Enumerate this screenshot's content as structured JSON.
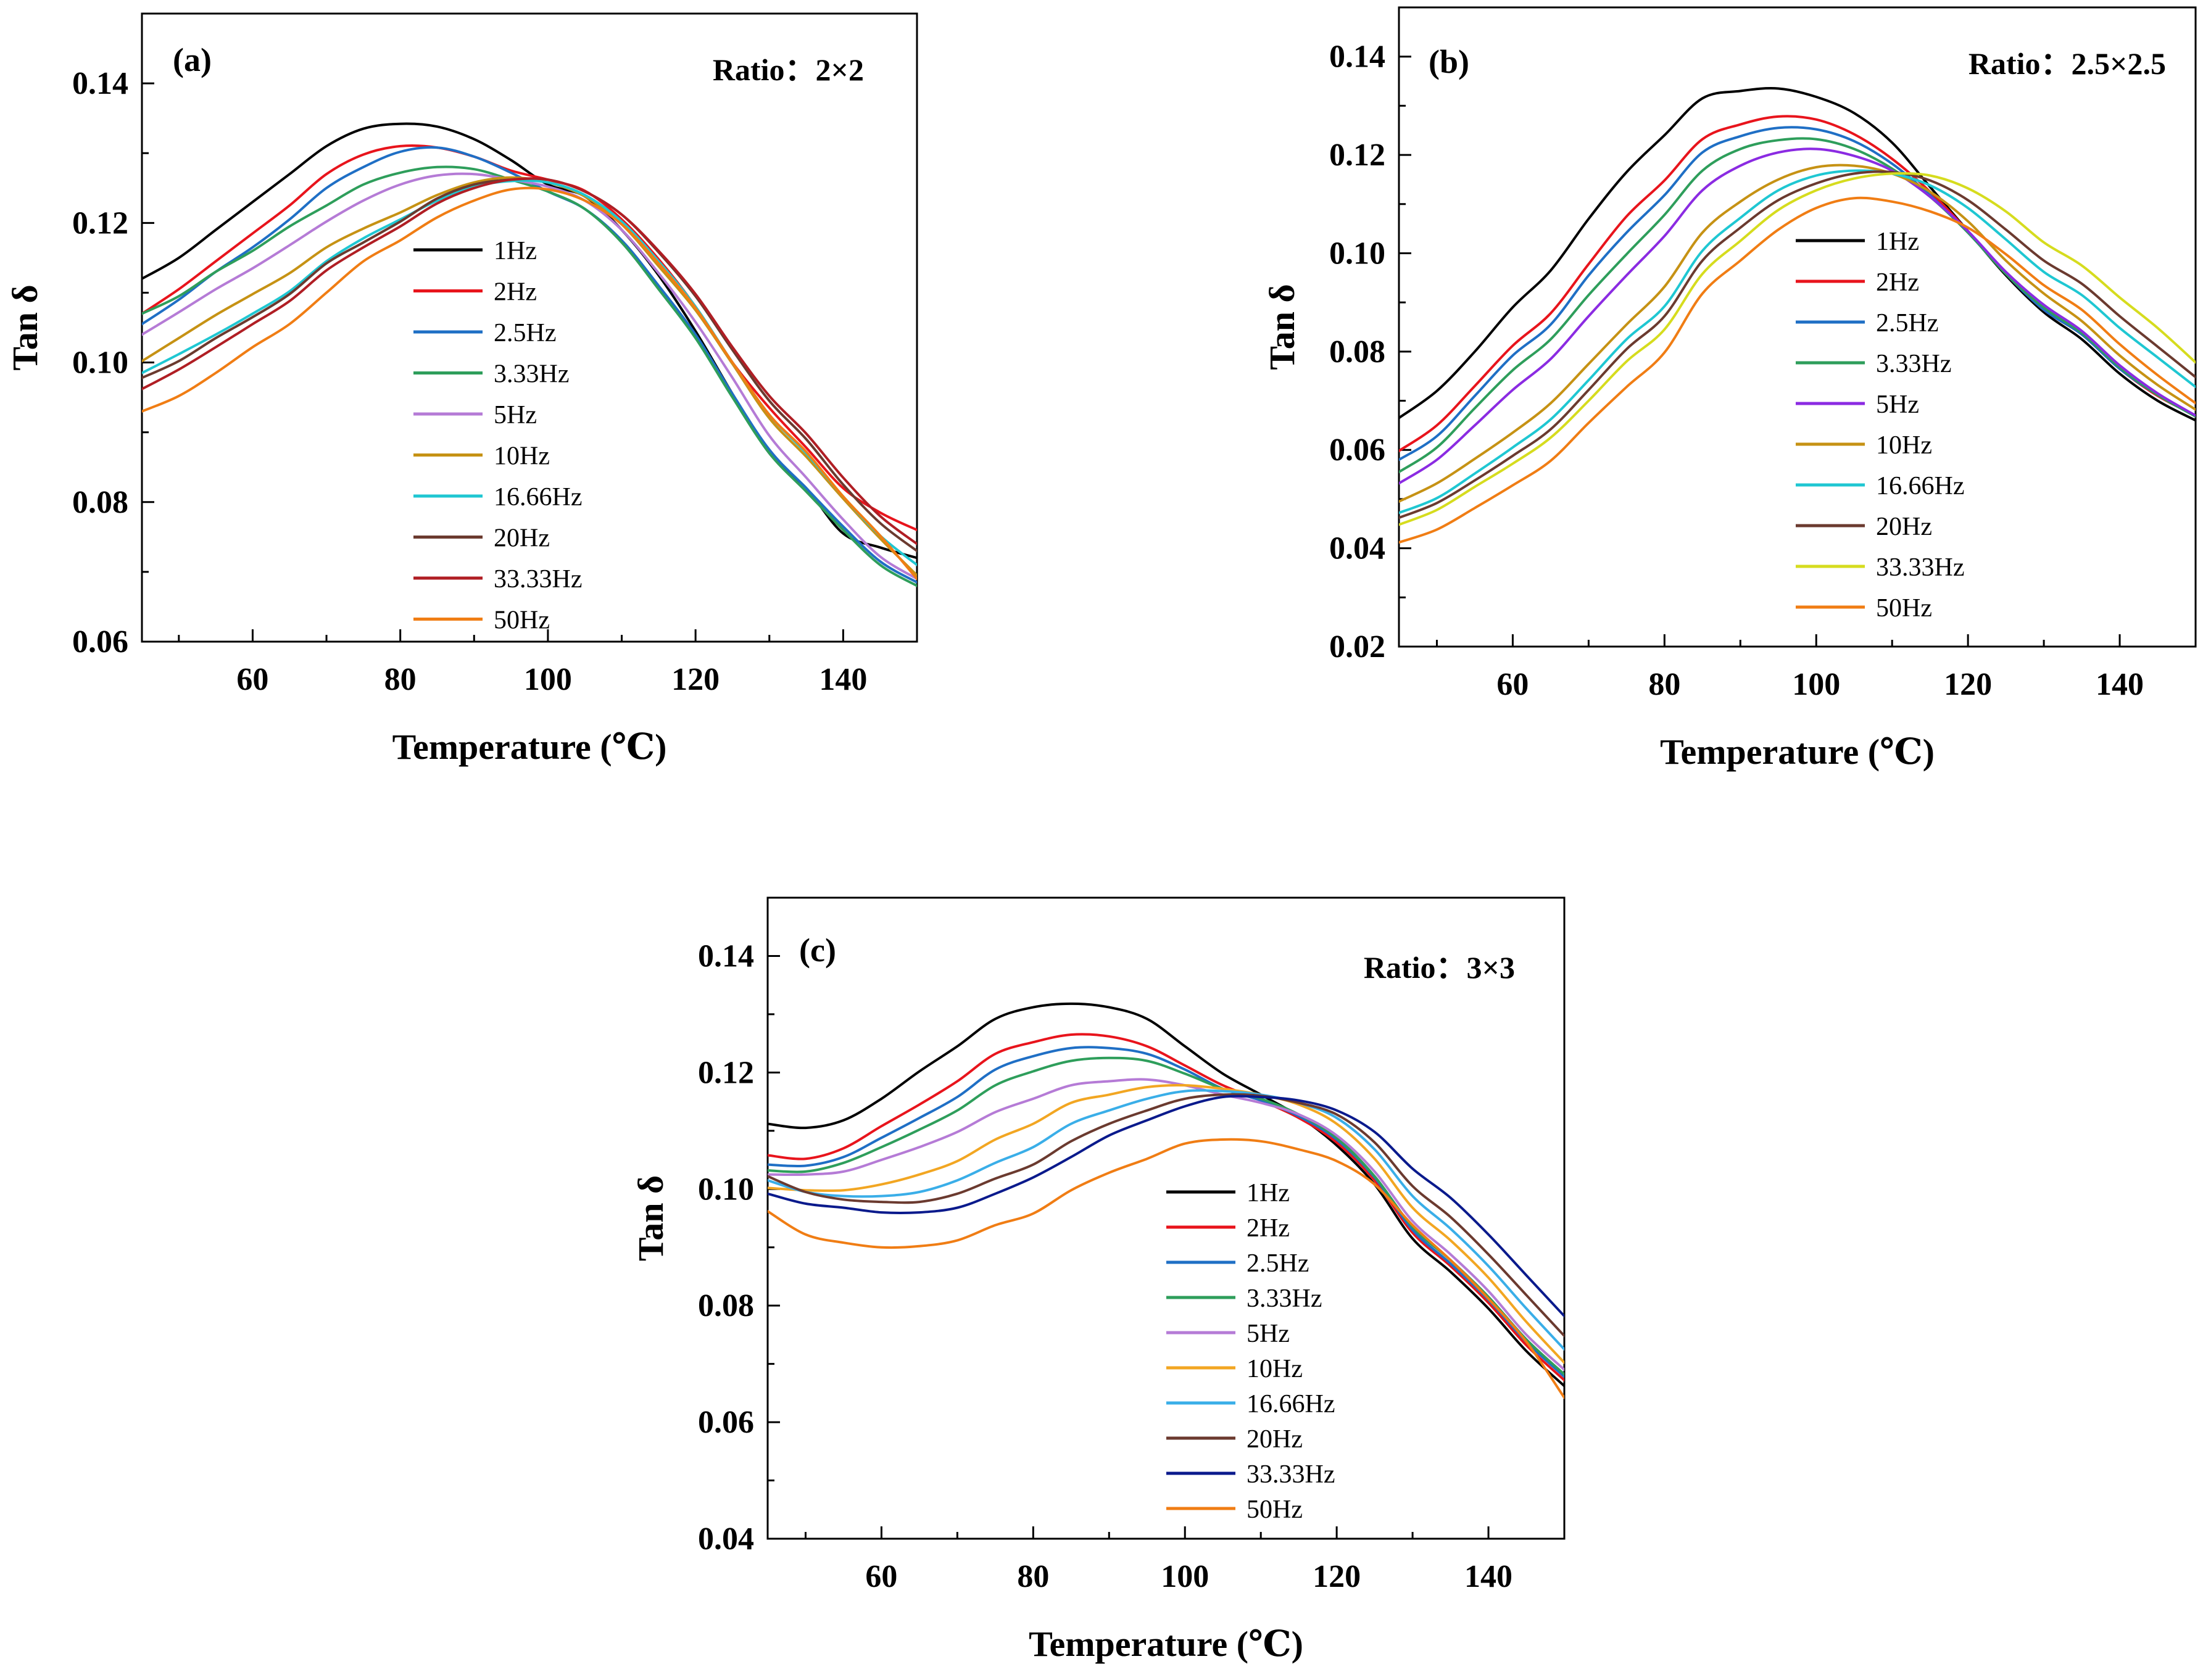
{
  "chart_data": [
    {
      "type": "line",
      "panel_label": "(a)",
      "ratio_text": "Ratio：2×2",
      "xlabel": "Temperature (℃)",
      "ylabel": "Tan δ",
      "xlim": [
        45,
        150
      ],
      "ylim": [
        0.06,
        0.15
      ],
      "xticks": [
        60,
        80,
        100,
        120,
        140
      ],
      "yticks": [
        0.06,
        0.08,
        0.1,
        0.12,
        0.14
      ],
      "ytick_labels": [
        "0.06",
        "0.08",
        "0.10",
        "0.12",
        "0.14"
      ],
      "legend_position": "center-left",
      "x": [
        45,
        50,
        55,
        60,
        65,
        70,
        75,
        80,
        85,
        90,
        95,
        100,
        105,
        110,
        115,
        120,
        125,
        130,
        135,
        140,
        145,
        150
      ],
      "series": [
        {
          "name": "1Hz",
          "color": "#000000",
          "values": [
            0.112,
            0.115,
            0.119,
            0.123,
            0.127,
            0.131,
            0.1335,
            0.1342,
            0.1338,
            0.132,
            0.129,
            0.1255,
            0.1238,
            0.119,
            0.1125,
            0.1045,
            0.0955,
            0.087,
            0.082,
            0.0755,
            0.0735,
            0.072
          ]
        },
        {
          "name": "2Hz",
          "color": "#e8141c",
          "values": [
            0.107,
            0.1105,
            0.1145,
            0.1185,
            0.1225,
            0.127,
            0.1298,
            0.131,
            0.1308,
            0.1295,
            0.1275,
            0.1262,
            0.1246,
            0.1205,
            0.1148,
            0.108,
            0.1,
            0.0935,
            0.0878,
            0.082,
            0.0785,
            0.076
          ]
        },
        {
          "name": "2.5Hz",
          "color": "#1f6fc5",
          "values": [
            0.1055,
            0.109,
            0.113,
            0.1165,
            0.1205,
            0.125,
            0.128,
            0.1302,
            0.1308,
            0.1295,
            0.1272,
            0.1245,
            0.122,
            0.1175,
            0.111,
            0.104,
            0.0955,
            0.0875,
            0.082,
            0.0765,
            0.0715,
            0.0685
          ]
        },
        {
          "name": "3.33Hz",
          "color": "#2e9e5b",
          "values": [
            0.107,
            0.1095,
            0.113,
            0.116,
            0.1195,
            0.1225,
            0.1255,
            0.1272,
            0.128,
            0.1277,
            0.1262,
            0.1245,
            0.122,
            0.1172,
            0.1105,
            0.1035,
            0.095,
            0.087,
            0.0815,
            0.076,
            0.071,
            0.068
          ]
        },
        {
          "name": "5Hz",
          "color": "#b57bd6",
          "values": [
            0.104,
            0.1072,
            0.1105,
            0.1135,
            0.1168,
            0.1202,
            0.1232,
            0.1255,
            0.1268,
            0.127,
            0.1262,
            0.1252,
            0.1232,
            0.119,
            0.1128,
            0.1058,
            0.0978,
            0.0895,
            0.0835,
            0.0775,
            0.0722,
            0.069
          ]
        },
        {
          "name": "10Hz",
          "color": "#c69214",
          "values": [
            0.1002,
            0.1035,
            0.1068,
            0.1098,
            0.1128,
            0.1165,
            0.1192,
            0.1215,
            0.124,
            0.1258,
            0.1265,
            0.1258,
            0.1238,
            0.1198,
            0.1138,
            0.1075,
            0.0998,
            0.092,
            0.0865,
            0.0805,
            0.0748,
            0.0695
          ]
        },
        {
          "name": "16.66Hz",
          "color": "#1fc7d2",
          "values": [
            0.0985,
            0.1012,
            0.104,
            0.107,
            0.1102,
            0.1145,
            0.1178,
            0.1205,
            0.1232,
            0.1252,
            0.126,
            0.1258,
            0.124,
            0.1202,
            0.1145,
            0.108,
            0.1,
            0.0925,
            0.087,
            0.0808,
            0.0752,
            0.071
          ]
        },
        {
          "name": "20Hz",
          "color": "#6b3a2f",
          "values": [
            0.0978,
            0.1002,
            0.1035,
            0.1065,
            0.1098,
            0.1142,
            0.1172,
            0.1202,
            0.1235,
            0.1255,
            0.1262,
            0.1262,
            0.1245,
            0.1212,
            0.1158,
            0.1095,
            0.1018,
            0.0945,
            0.089,
            0.0825,
            0.077,
            0.073
          ]
        },
        {
          "name": "33.33Hz",
          "color": "#b01e24",
          "values": [
            0.0962,
            0.099,
            0.1022,
            0.1055,
            0.1088,
            0.1132,
            0.1165,
            0.1195,
            0.1228,
            0.125,
            0.1262,
            0.1262,
            0.1245,
            0.1212,
            0.116,
            0.1098,
            0.1022,
            0.0952,
            0.0898,
            0.0835,
            0.078,
            0.074
          ]
        },
        {
          "name": "50Hz",
          "color": "#f07d14",
          "values": [
            0.093,
            0.0952,
            0.0985,
            0.1022,
            0.1055,
            0.11,
            0.1145,
            0.1175,
            0.1208,
            0.1232,
            0.1248,
            0.1248,
            0.1232,
            0.1198,
            0.1142,
            0.1078,
            0.1,
            0.0925,
            0.0872,
            0.0808,
            0.0752,
            0.069
          ]
        }
      ]
    },
    {
      "type": "line",
      "panel_label": "(b)",
      "ratio_text": "Ratio：2.5×2.5",
      "xlabel": "Temperature (℃)",
      "ylabel": "Tan δ",
      "xlim": [
        45,
        150
      ],
      "ylim": [
        0.02,
        0.15
      ],
      "xticks": [
        60,
        80,
        100,
        120,
        140
      ],
      "yticks": [
        0.02,
        0.04,
        0.06,
        0.08,
        0.1,
        0.12,
        0.14
      ],
      "ytick_labels": [
        "0.02",
        "0.04",
        "0.06",
        "0.08",
        "0.10",
        "0.12",
        "0.14"
      ],
      "legend_position": "center",
      "x": [
        45,
        50,
        55,
        60,
        65,
        70,
        75,
        80,
        85,
        90,
        95,
        100,
        105,
        110,
        115,
        120,
        125,
        130,
        135,
        140,
        145,
        150
      ],
      "series": [
        {
          "name": "1Hz",
          "color": "#000000",
          "values": [
            0.0665,
            0.072,
            0.08,
            0.089,
            0.0965,
            0.107,
            0.1165,
            0.124,
            0.1315,
            0.133,
            0.1335,
            0.1318,
            0.1285,
            0.1225,
            0.1135,
            0.1045,
            0.0955,
            0.088,
            0.0825,
            0.0755,
            0.07,
            0.066
          ]
        },
        {
          "name": "2Hz",
          "color": "#e8141c",
          "values": [
            0.0598,
            0.065,
            0.073,
            0.0812,
            0.0878,
            0.0978,
            0.1075,
            0.1148,
            0.1232,
            0.1262,
            0.1278,
            0.1272,
            0.1242,
            0.1192,
            0.1125,
            0.1045,
            0.0958,
            0.0885,
            0.0835,
            0.0765,
            0.071,
            0.067
          ]
        },
        {
          "name": "2.5Hz",
          "color": "#1f6fc5",
          "values": [
            0.058,
            0.0628,
            0.071,
            0.0792,
            0.0855,
            0.0955,
            0.1042,
            0.1118,
            0.1205,
            0.1238,
            0.1255,
            0.1252,
            0.1228,
            0.1182,
            0.1118,
            0.1042,
            0.0958,
            0.0885,
            0.0835,
            0.0765,
            0.0712,
            0.0668
          ]
        },
        {
          "name": "3.33Hz",
          "color": "#2e9e5b",
          "values": [
            0.0555,
            0.0605,
            0.0685,
            0.0762,
            0.0825,
            0.0915,
            0.0998,
            0.1078,
            0.1168,
            0.1212,
            0.123,
            0.1232,
            0.1212,
            0.1172,
            0.1115,
            0.1042,
            0.0958,
            0.089,
            0.0838,
            0.0768,
            0.0712,
            0.0668
          ]
        },
        {
          "name": "5Hz",
          "color": "#8b2be2",
          "values": [
            0.0532,
            0.058,
            0.065,
            0.0722,
            0.0785,
            0.0872,
            0.0955,
            0.1035,
            0.1128,
            0.1178,
            0.1205,
            0.1212,
            0.1198,
            0.1168,
            0.1115,
            0.1045,
            0.0962,
            0.0895,
            0.0842,
            0.0772,
            0.0715,
            0.067
          ]
        },
        {
          "name": "10Hz",
          "color": "#c69214",
          "values": [
            0.0495,
            0.0532,
            0.0582,
            0.0635,
            0.0695,
            0.0775,
            0.0855,
            0.0932,
            0.1042,
            0.1105,
            0.115,
            0.1175,
            0.1178,
            0.1162,
            0.1125,
            0.1065,
            0.0985,
            0.0918,
            0.0862,
            0.0792,
            0.0732,
            0.0682
          ]
        },
        {
          "name": "16.66Hz",
          "color": "#1fc7d2",
          "values": [
            0.0472,
            0.0502,
            0.0552,
            0.0605,
            0.0662,
            0.0742,
            0.0825,
            0.0892,
            0.1005,
            0.1072,
            0.1128,
            0.1158,
            0.1168,
            0.1162,
            0.1138,
            0.1092,
            0.1028,
            0.0962,
            0.0915,
            0.0848,
            0.0788,
            0.0728
          ]
        },
        {
          "name": "20Hz",
          "color": "#6b3a2f",
          "values": [
            0.0462,
            0.0492,
            0.0538,
            0.0588,
            0.0642,
            0.0722,
            0.0805,
            0.0872,
            0.0985,
            0.1052,
            0.1108,
            0.1142,
            0.1162,
            0.1165,
            0.1148,
            0.1108,
            0.1048,
            0.0985,
            0.0938,
            0.0872,
            0.081,
            0.0748
          ]
        },
        {
          "name": "33.33Hz",
          "color": "#d6dc1e",
          "values": [
            0.0448,
            0.0478,
            0.0525,
            0.0572,
            0.0625,
            0.07,
            0.078,
            0.0845,
            0.0958,
            0.1025,
            0.1088,
            0.1128,
            0.1152,
            0.1162,
            0.1158,
            0.1132,
            0.1085,
            0.1022,
            0.0975,
            0.091,
            0.0848,
            0.0778
          ]
        },
        {
          "name": "50Hz",
          "color": "#f07d14",
          "values": [
            0.0412,
            0.0438,
            0.0482,
            0.0528,
            0.0578,
            0.0655,
            0.0728,
            0.0798,
            0.0918,
            0.0985,
            0.1048,
            0.1092,
            0.1112,
            0.1105,
            0.1085,
            0.1052,
            0.0998,
            0.0935,
            0.0885,
            0.0815,
            0.0752,
            0.0695
          ]
        }
      ]
    },
    {
      "type": "line",
      "panel_label": "(c)",
      "ratio_text": "Ratio：3×3",
      "xlabel": "Temperature (℃)",
      "ylabel": "Tan δ",
      "xlim": [
        45,
        150
      ],
      "ylim": [
        0.04,
        0.15
      ],
      "xticks": [
        60,
        80,
        100,
        120,
        140
      ],
      "yticks": [
        0.04,
        0.06,
        0.08,
        0.1,
        0.12,
        0.14
      ],
      "ytick_labels": [
        "0.04",
        "0.06",
        "0.08",
        "0.10",
        "0.12",
        "0.14"
      ],
      "legend_position": "center",
      "x": [
        45,
        50,
        55,
        60,
        65,
        70,
        75,
        80,
        85,
        90,
        95,
        100,
        105,
        110,
        115,
        120,
        125,
        130,
        135,
        140,
        145,
        150
      ],
      "series": [
        {
          "name": "1Hz",
          "color": "#000000",
          "values": [
            0.1112,
            0.1105,
            0.1118,
            0.1155,
            0.1202,
            0.1245,
            0.1292,
            0.1312,
            0.1318,
            0.1312,
            0.1292,
            0.1245,
            0.1198,
            0.1162,
            0.1125,
            0.1075,
            0.1008,
            0.0915,
            0.0858,
            0.0795,
            0.0722,
            0.0662
          ]
        },
        {
          "name": "2Hz",
          "color": "#e8141c",
          "values": [
            0.1058,
            0.1052,
            0.107,
            0.1108,
            0.1145,
            0.1185,
            0.1232,
            0.1252,
            0.1265,
            0.1262,
            0.1245,
            0.1212,
            0.1178,
            0.1152,
            0.1122,
            0.108,
            0.1015,
            0.0925,
            0.0868,
            0.0805,
            0.0732,
            0.0672
          ]
        },
        {
          "name": "2.5Hz",
          "color": "#1f6fc5",
          "values": [
            0.1042,
            0.104,
            0.1055,
            0.1088,
            0.1122,
            0.1158,
            0.1205,
            0.1228,
            0.1242,
            0.1242,
            0.1232,
            0.1205,
            0.1172,
            0.1152,
            0.1125,
            0.1085,
            0.102,
            0.093,
            0.0872,
            0.081,
            0.0738,
            0.0678
          ]
        },
        {
          "name": "3.33Hz",
          "color": "#2e9e5b",
          "values": [
            0.1032,
            0.103,
            0.1045,
            0.1072,
            0.1102,
            0.1135,
            0.1178,
            0.1202,
            0.122,
            0.1225,
            0.122,
            0.1198,
            0.1172,
            0.1155,
            0.1128,
            0.1088,
            0.1022,
            0.0935,
            0.0878,
            0.0815,
            0.0742,
            0.0682
          ]
        },
        {
          "name": "5Hz",
          "color": "#b57bd6",
          "values": [
            0.1025,
            0.1025,
            0.103,
            0.105,
            0.1072,
            0.1098,
            0.1132,
            0.1155,
            0.1178,
            0.1185,
            0.1188,
            0.1178,
            0.1162,
            0.1148,
            0.1128,
            0.1092,
            0.103,
            0.0945,
            0.0888,
            0.0825,
            0.075,
            0.069
          ]
        },
        {
          "name": "10Hz",
          "color": "#f2a622",
          "values": [
            0.1002,
            0.0998,
            0.0998,
            0.1008,
            0.1025,
            0.1048,
            0.1085,
            0.1112,
            0.1148,
            0.1162,
            0.1175,
            0.1178,
            0.1172,
            0.1162,
            0.1145,
            0.1112,
            0.1052,
            0.0968,
            0.0912,
            0.0848,
            0.0772,
            0.0702
          ]
        },
        {
          "name": "16.66Hz",
          "color": "#3aaee8",
          "values": [
            0.1015,
            0.0995,
            0.0988,
            0.0988,
            0.0995,
            0.1015,
            0.1045,
            0.1072,
            0.1112,
            0.1135,
            0.1155,
            0.1168,
            0.1168,
            0.1162,
            0.1148,
            0.1122,
            0.1068,
            0.0988,
            0.0932,
            0.0868,
            0.0795,
            0.0725
          ]
        },
        {
          "name": "20Hz",
          "color": "#6b3a2f",
          "values": [
            0.1022,
            0.0995,
            0.0982,
            0.0978,
            0.0978,
            0.0992,
            0.1018,
            0.1042,
            0.1082,
            0.1112,
            0.1135,
            0.1155,
            0.1162,
            0.116,
            0.1148,
            0.1128,
            0.108,
            0.1005,
            0.0952,
            0.0888,
            0.0818,
            0.0748
          ]
        },
        {
          "name": "33.33Hz",
          "color": "#0a1a8c",
          "values": [
            0.0992,
            0.0975,
            0.0968,
            0.096,
            0.096,
            0.0968,
            0.0992,
            0.102,
            0.1055,
            0.1092,
            0.1118,
            0.1142,
            0.1158,
            0.1158,
            0.1152,
            0.1135,
            0.1098,
            0.1035,
            0.0985,
            0.0922,
            0.0852,
            0.0782
          ]
        },
        {
          "name": "50Hz",
          "color": "#f07d14",
          "values": [
            0.0962,
            0.0922,
            0.0908,
            0.09,
            0.0902,
            0.0912,
            0.0938,
            0.0958,
            0.0998,
            0.1028,
            0.1052,
            0.1078,
            0.1085,
            0.1082,
            0.1068,
            0.1048,
            0.1008,
            0.0938,
            0.0878,
            0.0812,
            0.0738,
            0.0642
          ]
        }
      ]
    }
  ]
}
